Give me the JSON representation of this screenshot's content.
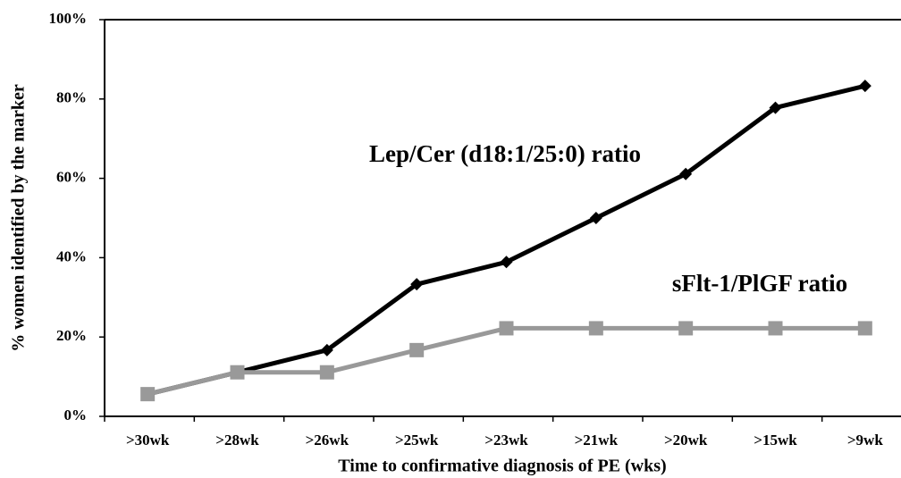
{
  "chart_data": {
    "type": "line",
    "x_label": "Time to confirmative diagnosis of PE (wks)",
    "y_label": "%  women identified by the marker",
    "categories": [
      ">30wk",
      ">28wk",
      ">26wk",
      ">25wk",
      ">23wk",
      ">21wk",
      ">20wk",
      ">15wk",
      ">9wk"
    ],
    "series": [
      {
        "name": "Lep/Cer (d18:1/25:0) ratio",
        "color": "#000000",
        "marker": "diamond",
        "values": [
          5.6,
          11.1,
          16.7,
          33.3,
          38.9,
          50,
          61.1,
          77.8,
          83.3
        ]
      },
      {
        "name": "sFlt-1/PlGF ratio",
        "color": "#999999",
        "marker": "square",
        "values": [
          5.6,
          11.1,
          11.1,
          16.7,
          22.2,
          22.2,
          22.2,
          22.2,
          22.2
        ]
      }
    ],
    "ylim": [
      0,
      100
    ],
    "yticks": [
      {
        "value": 0,
        "label": "0%"
      },
      {
        "value": 20,
        "label": "20%"
      },
      {
        "value": 40,
        "label": "40%"
      },
      {
        "value": 60,
        "label": "60%"
      },
      {
        "value": 80,
        "label": "80%"
      },
      {
        "value": 100,
        "label": "100%"
      }
    ],
    "grid": false
  }
}
